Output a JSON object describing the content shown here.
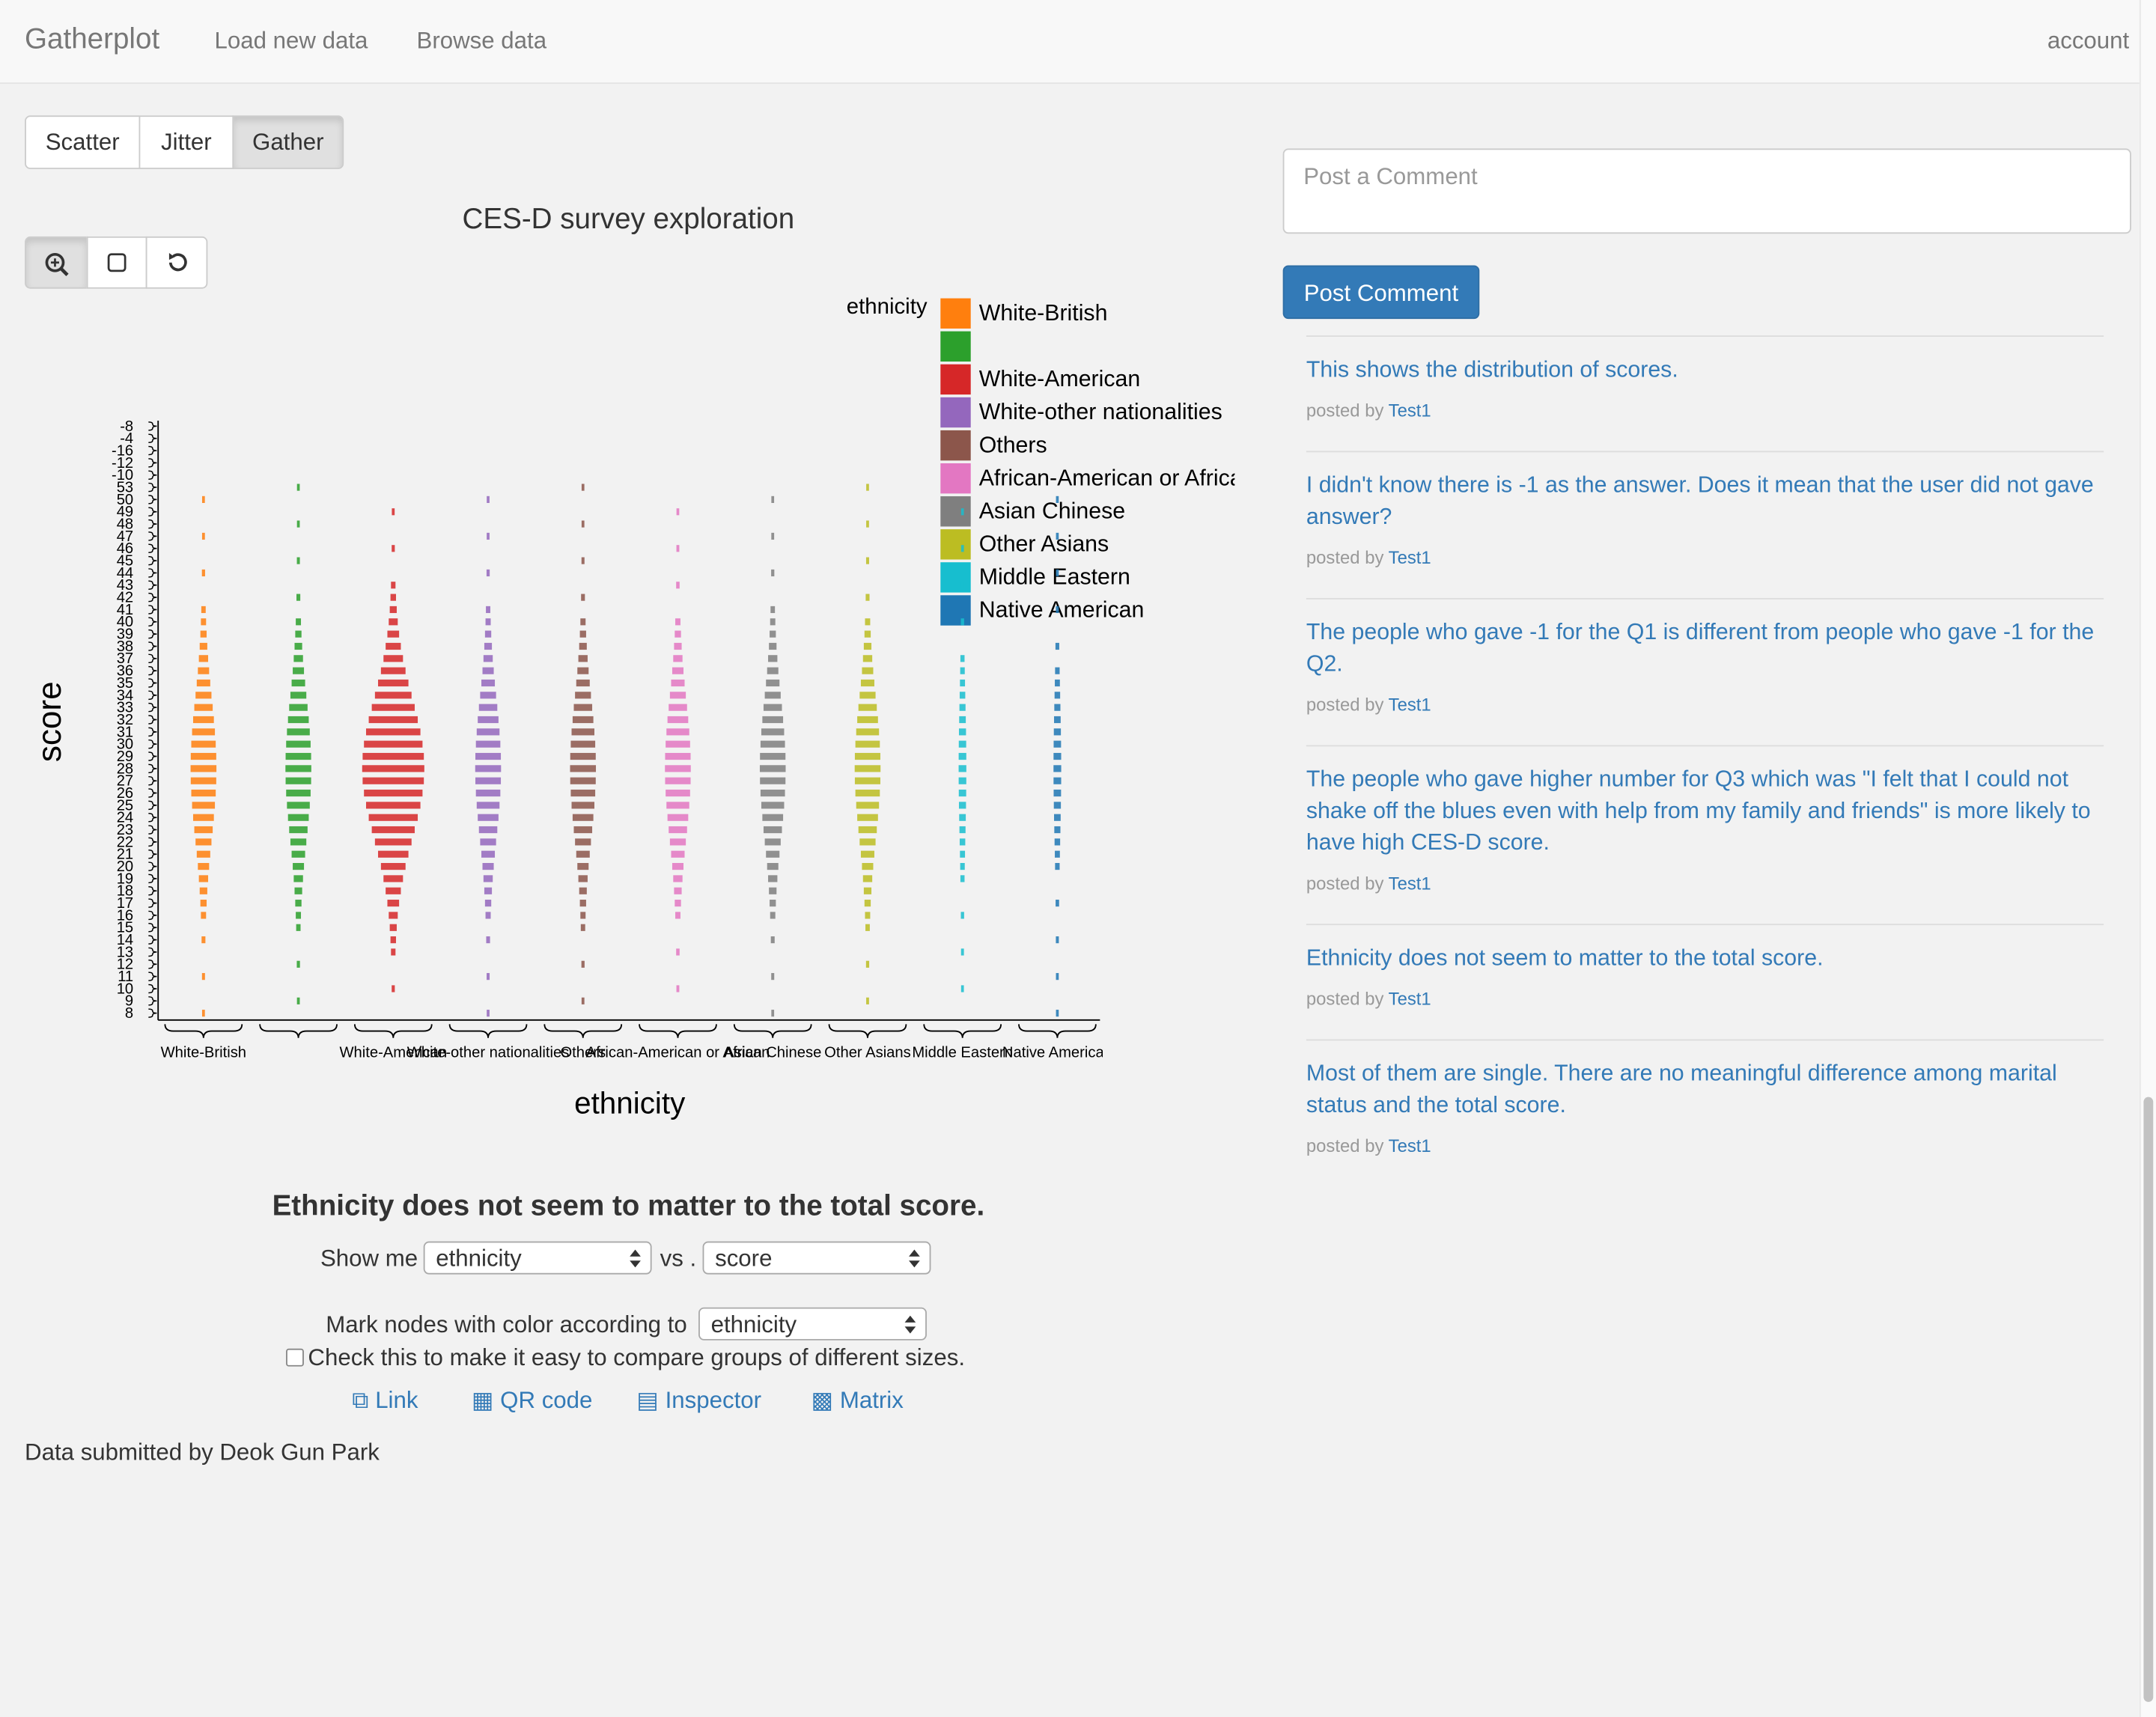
{
  "nav": {
    "brand": "Gatherplot",
    "links": [
      "Load new data",
      "Browse data"
    ],
    "account": "account"
  },
  "view_modes": [
    "Scatter",
    "Jitter",
    "Gather"
  ],
  "chart_data": {
    "type": "gather",
    "title": "CES-D survey exploration",
    "x_label": "ethnicity",
    "y_label": "score",
    "legend_title": "ethnicity",
    "categories": [
      "White-British",
      null,
      "White-American",
      "White-other nationalities",
      "Others",
      "African-American or African",
      "Asian Chinese",
      "Other Asians",
      "Middle Eastern",
      "Native American"
    ],
    "colors": [
      "#ff7f0e",
      "#2ca02c",
      "#d62728",
      "#9467bd",
      "#8c564b",
      "#e377c2",
      "#7f7f7f",
      "#bcbd22",
      "#17becf",
      "#1f77b4"
    ],
    "y_categories": [
      -8,
      -4,
      -16,
      -12,
      -10,
      53,
      50,
      49,
      48,
      47,
      46,
      45,
      44,
      43,
      42,
      41,
      40,
      39,
      38,
      37,
      36,
      35,
      34,
      33,
      32,
      31,
      30,
      29,
      28,
      27,
      26,
      25,
      24,
      23,
      22,
      21,
      20,
      19,
      18,
      17,
      16,
      15,
      14,
      13,
      12,
      11,
      10,
      9,
      8
    ]
  },
  "controls": {
    "heading": "Ethnicity does not seem to matter to the total score.",
    "show_me": "Show me",
    "x_select": "ethnicity",
    "vs": "vs .",
    "y_select": "score",
    "color_label": "Mark nodes with color according to",
    "color_select": "ethnicity",
    "checkbox_label": "Check this to make it easy to compare groups of different sizes.",
    "links": [
      "Link",
      "QR code",
      "Inspector",
      "Matrix"
    ]
  },
  "footer": "Data submitted by Deok Gun Park",
  "comments": {
    "placeholder": "Post a Comment",
    "button": "Post Comment",
    "posted_by": "posted by",
    "items": [
      {
        "text": "This shows the distribution of scores.",
        "author": "Test1"
      },
      {
        "text": "I didn't know there is -1 as the answer. Does it mean that the user did not gave answer?",
        "author": "Test1"
      },
      {
        "text": "The people who gave -1 for the Q1 is different from people who gave -1 for the Q2.",
        "author": "Test1"
      },
      {
        "text": "The people who gave higher number for Q3 which was \"I felt that I could not shake off the blues even with help from my family and friends\" is more likely to have high CES-D score.",
        "author": "Test1"
      },
      {
        "text": "Ethnicity does not seem to matter to the total score.",
        "author": "Test1"
      },
      {
        "text": "Most of them are single. There are no meaningful difference among marital status and the total score.",
        "author": "Test1"
      }
    ]
  }
}
